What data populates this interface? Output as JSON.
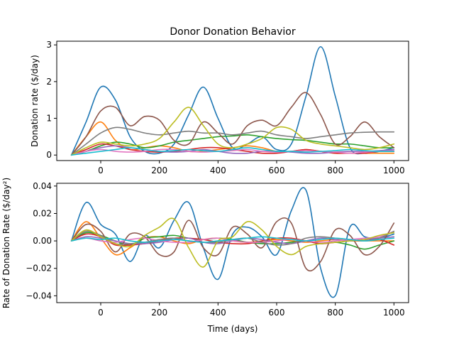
{
  "title": "Donor Donation Behavior",
  "chart_data": [
    {
      "type": "line",
      "title": "Donor Donation Behavior",
      "xlabel": "",
      "ylabel": "Donation rate ($/day)",
      "xlim": [
        -150,
        1050
      ],
      "ylim": [
        -0.15,
        3.1
      ],
      "xticks": [
        0,
        200,
        400,
        600,
        800,
        1000
      ],
      "yticks": [
        0,
        1,
        2,
        3
      ],
      "grid": false,
      "series": [
        {
          "color": "#1f77b4",
          "x": [
            -100,
            -50,
            0,
            50,
            100,
            150,
            200,
            250,
            300,
            350,
            400,
            450,
            500,
            550,
            600,
            650,
            700,
            750,
            800,
            850,
            900,
            950,
            1000
          ],
          "values": [
            0,
            0.9,
            1.85,
            1.5,
            0.5,
            0.1,
            0.05,
            0.3,
            1.1,
            1.85,
            1.0,
            0.2,
            0.3,
            0.5,
            0.15,
            0.3,
            1.6,
            2.95,
            1.6,
            0.2,
            0.05,
            0.1,
            0.2
          ]
        },
        {
          "color": "#ff7f0e",
          "x": [
            -100,
            -50,
            0,
            50,
            100,
            150,
            200,
            250,
            300,
            350,
            400,
            450,
            500,
            550,
            600,
            650,
            700,
            750,
            800,
            850,
            900,
            950,
            1000
          ],
          "values": [
            0,
            0.5,
            0.9,
            0.4,
            0.15,
            0.2,
            0.25,
            0.2,
            0.1,
            0.1,
            0.15,
            0.2,
            0.25,
            0.2,
            0.1,
            0.1,
            0.15,
            0.1,
            0.05,
            0.05,
            0.05,
            0.05,
            0.05
          ]
        },
        {
          "color": "#2ca02c",
          "x": [
            -100,
            -50,
            0,
            50,
            100,
            150,
            200,
            250,
            300,
            350,
            400,
            450,
            500,
            550,
            600,
            650,
            700,
            750,
            800,
            850,
            900,
            950,
            1000
          ],
          "values": [
            0,
            0.1,
            0.25,
            0.35,
            0.3,
            0.2,
            0.25,
            0.35,
            0.4,
            0.45,
            0.5,
            0.52,
            0.55,
            0.5,
            0.45,
            0.42,
            0.4,
            0.35,
            0.3,
            0.3,
            0.25,
            0.2,
            0.2
          ]
        },
        {
          "color": "#d62728",
          "x": [
            -100,
            -50,
            0,
            50,
            100,
            150,
            200,
            250,
            300,
            350,
            400,
            450,
            500,
            550,
            600,
            650,
            700,
            750,
            800,
            850,
            900,
            950,
            1000
          ],
          "values": [
            0,
            0.15,
            0.3,
            0.25,
            0.15,
            0.1,
            0.08,
            0.1,
            0.15,
            0.2,
            0.2,
            0.15,
            0.1,
            0.05,
            0.05,
            0.1,
            0.15,
            0.1,
            0.05,
            0.05,
            0.05,
            0.1,
            0.1
          ]
        },
        {
          "color": "#9467bd",
          "x": [
            -100,
            -50,
            0,
            50,
            100,
            150,
            200,
            250,
            300,
            350,
            400,
            450,
            500,
            550,
            600,
            650,
            700,
            750,
            800,
            850,
            900,
            950,
            1000
          ],
          "values": [
            0,
            0.1,
            0.2,
            0.25,
            0.2,
            0.15,
            0.1,
            0.08,
            0.1,
            0.15,
            0.1,
            0.05,
            0.05,
            0.1,
            0.1,
            0.08,
            0.05,
            0.05,
            0.08,
            0.1,
            0.1,
            0.12,
            0.15
          ]
        },
        {
          "color": "#8c564b",
          "x": [
            -100,
            -50,
            0,
            50,
            100,
            150,
            200,
            250,
            300,
            350,
            400,
            450,
            500,
            550,
            600,
            650,
            700,
            750,
            800,
            850,
            900,
            950,
            1000
          ],
          "values": [
            0,
            0.5,
            1.2,
            1.3,
            0.8,
            1.05,
            0.95,
            0.4,
            0.3,
            0.9,
            0.6,
            0.3,
            0.8,
            0.95,
            0.8,
            1.3,
            1.7,
            1.1,
            0.3,
            0.5,
            0.9,
            0.5,
            0.2
          ]
        },
        {
          "color": "#e377c2",
          "x": [
            -100,
            -50,
            0,
            50,
            100,
            150,
            200,
            250,
            300,
            350,
            400,
            450,
            500,
            550,
            600,
            650,
            700,
            750,
            800,
            850,
            900,
            950,
            1000
          ],
          "values": [
            0,
            0.1,
            0.15,
            0.1,
            0.08,
            0.1,
            0.15,
            0.15,
            0.1,
            0.08,
            0.1,
            0.12,
            0.15,
            0.1,
            0.08,
            0.1,
            0.12,
            0.1,
            0.08,
            0.05,
            0.08,
            0.1,
            0.12
          ]
        },
        {
          "color": "#7f7f7f",
          "x": [
            -100,
            -50,
            0,
            50,
            100,
            150,
            200,
            250,
            300,
            350,
            400,
            450,
            500,
            550,
            600,
            650,
            700,
            750,
            800,
            850,
            900,
            950,
            1000
          ],
          "values": [
            0,
            0.3,
            0.6,
            0.75,
            0.7,
            0.6,
            0.55,
            0.6,
            0.65,
            0.6,
            0.6,
            0.55,
            0.6,
            0.65,
            0.55,
            0.5,
            0.45,
            0.5,
            0.55,
            0.6,
            0.62,
            0.63,
            0.63
          ]
        },
        {
          "color": "#bcbd22",
          "x": [
            -100,
            -50,
            0,
            50,
            100,
            150,
            200,
            250,
            300,
            350,
            400,
            450,
            500,
            550,
            600,
            650,
            700,
            750,
            800,
            850,
            900,
            950,
            1000
          ],
          "values": [
            0,
            0.2,
            0.35,
            0.3,
            0.25,
            0.3,
            0.45,
            0.9,
            1.3,
            0.8,
            0.3,
            0.2,
            0.3,
            0.45,
            0.75,
            0.7,
            0.4,
            0.3,
            0.25,
            0.2,
            0.15,
            0.2,
            0.3
          ]
        },
        {
          "color": "#17becf",
          "x": [
            -100,
            -50,
            0,
            50,
            100,
            150,
            200,
            250,
            300,
            350,
            400,
            450,
            500,
            550,
            600,
            650,
            700,
            750,
            800,
            850,
            900,
            950,
            1000
          ],
          "values": [
            0,
            0.05,
            0.1,
            0.15,
            0.2,
            0.15,
            0.1,
            0.12,
            0.15,
            0.12,
            0.1,
            0.15,
            0.2,
            0.15,
            0.1,
            0.1,
            0.08,
            0.1,
            0.12,
            0.15,
            0.12,
            0.1,
            0.1
          ]
        }
      ]
    },
    {
      "type": "line",
      "title": "",
      "xlabel": "Time (days)",
      "ylabel": "Rate of Donation Rate ($/day²)",
      "xlim": [
        -150,
        1050
      ],
      "ylim": [
        -0.045,
        0.042
      ],
      "xticks": [
        0,
        200,
        400,
        600,
        800,
        1000
      ],
      "yticks": [
        -0.04,
        -0.02,
        0.0,
        0.02,
        0.04
      ],
      "yticklabels": [
        "−0.04",
        "−0.02",
        "0.00",
        "0.02",
        "0.04"
      ],
      "grid": false,
      "series": [
        {
          "color": "#1f77b4",
          "x": [
            -100,
            -50,
            0,
            50,
            100,
            150,
            200,
            250,
            300,
            350,
            400,
            450,
            500,
            550,
            600,
            650,
            700,
            750,
            800,
            850,
            900,
            950,
            1000
          ],
          "values": [
            0,
            0.028,
            0.012,
            0.005,
            -0.015,
            0.004,
            -0.005,
            0.015,
            0.028,
            -0.005,
            -0.028,
            0.005,
            0.01,
            0.003,
            -0.01,
            0.022,
            0.037,
            -0.02,
            -0.04,
            0.01,
            0.003,
            0.002,
            0.005
          ]
        },
        {
          "color": "#ff7f0e",
          "x": [
            -100,
            -50,
            0,
            50,
            100,
            150,
            200,
            250,
            300,
            350,
            400,
            450,
            500,
            550,
            600,
            650,
            700,
            750,
            800,
            850,
            900,
            950,
            1000
          ],
          "values": [
            0,
            0.014,
            0.002,
            -0.01,
            -0.005,
            0.002,
            0.003,
            0,
            -0.002,
            0.001,
            0.002,
            0,
            -0.001,
            0,
            0.001,
            0,
            -0.001,
            0,
            0.001,
            0,
            0,
            0,
            0
          ]
        },
        {
          "color": "#2ca02c",
          "x": [
            -100,
            -50,
            0,
            50,
            100,
            150,
            200,
            250,
            300,
            350,
            400,
            450,
            500,
            550,
            600,
            650,
            700,
            750,
            800,
            850,
            900,
            950,
            1000
          ],
          "values": [
            0,
            0.006,
            0.004,
            0,
            -0.003,
            0.002,
            0.003,
            0.004,
            0.002,
            0.001,
            0.002,
            0.001,
            -0.001,
            -0.002,
            -0.002,
            -0.001,
            0,
            -0.002,
            -0.001,
            -0.003,
            -0.006,
            -0.003,
            0
          ]
        },
        {
          "color": "#d62728",
          "x": [
            -100,
            -50,
            0,
            50,
            100,
            150,
            200,
            250,
            300,
            350,
            400,
            450,
            500,
            550,
            600,
            650,
            700,
            750,
            800,
            850,
            900,
            950,
            1000
          ],
          "values": [
            0,
            0.005,
            0.003,
            -0.003,
            -0.003,
            -0.002,
            0,
            0.002,
            0.002,
            0.001,
            -0.001,
            -0.002,
            -0.002,
            0,
            0.002,
            0.002,
            0,
            -0.002,
            -0.001,
            0,
            0.001,
            0.001,
            -0.003
          ]
        },
        {
          "color": "#9467bd",
          "x": [
            -100,
            -50,
            0,
            50,
            100,
            150,
            200,
            250,
            300,
            350,
            400,
            450,
            500,
            550,
            600,
            650,
            700,
            750,
            800,
            850,
            900,
            950,
            1000
          ],
          "values": [
            0,
            0.003,
            0.002,
            0,
            -0.002,
            -0.002,
            -0.001,
            0.001,
            0.002,
            -0.001,
            -0.002,
            0,
            0.002,
            0.001,
            -0.001,
            -0.002,
            0,
            0.002,
            0.001,
            0,
            0.001,
            0.002,
            0.003
          ]
        },
        {
          "color": "#8c564b",
          "x": [
            -100,
            -50,
            0,
            50,
            100,
            150,
            200,
            250,
            300,
            350,
            400,
            450,
            500,
            550,
            600,
            650,
            700,
            750,
            800,
            850,
            900,
            950,
            1000
          ],
          "values": [
            0,
            0.012,
            0.007,
            -0.008,
            0.005,
            0.003,
            -0.01,
            -0.008,
            0.015,
            -0.005,
            -0.01,
            0.01,
            0.005,
            -0.005,
            0.014,
            0.013,
            -0.02,
            -0.015,
            0.008,
            0.004,
            -0.01,
            -0.004,
            0.013
          ]
        },
        {
          "color": "#e377c2",
          "x": [
            -100,
            -50,
            0,
            50,
            100,
            150,
            200,
            250,
            300,
            350,
            400,
            450,
            500,
            550,
            600,
            650,
            700,
            750,
            800,
            850,
            900,
            950,
            1000
          ],
          "values": [
            0,
            0.002,
            0,
            -0.001,
            0.001,
            0.002,
            0,
            -0.001,
            -0.001,
            0.001,
            0.002,
            0,
            -0.001,
            -0.001,
            0,
            0.001,
            0,
            -0.001,
            0,
            0.001,
            0.002,
            0.003,
            0.007
          ]
        },
        {
          "color": "#7f7f7f",
          "x": [
            -100,
            -50,
            0,
            50,
            100,
            150,
            200,
            250,
            300,
            350,
            400,
            450,
            500,
            550,
            600,
            650,
            700,
            750,
            800,
            850,
            900,
            950,
            1000
          ],
          "values": [
            0,
            0.007,
            0.004,
            -0.002,
            -0.002,
            -0.001,
            0.001,
            0.002,
            0,
            -0.001,
            -0.001,
            0.001,
            0.002,
            -0.001,
            -0.003,
            -0.002,
            0.002,
            0.003,
            0.002,
            0.001,
            0,
            0.002,
            0.007
          ]
        },
        {
          "color": "#bcbd22",
          "x": [
            -100,
            -50,
            0,
            50,
            100,
            150,
            200,
            250,
            300,
            350,
            400,
            450,
            500,
            550,
            600,
            650,
            700,
            750,
            800,
            850,
            900,
            950,
            1000
          ],
          "values": [
            0,
            0.008,
            0.003,
            -0.002,
            -0.004,
            0.004,
            0.01,
            0.016,
            -0.005,
            -0.019,
            0,
            0.003,
            0.014,
            0.008,
            -0.004,
            -0.01,
            -0.004,
            -0.002,
            -0.001,
            0,
            0.001,
            0.004,
            0.006
          ]
        },
        {
          "color": "#17becf",
          "x": [
            -100,
            -50,
            0,
            50,
            100,
            150,
            200,
            250,
            300,
            350,
            400,
            450,
            500,
            550,
            600,
            650,
            700,
            750,
            800,
            850,
            900,
            950,
            1000
          ],
          "values": [
            0,
            0.002,
            0.001,
            0.002,
            0,
            -0.001,
            0,
            0.001,
            0,
            -0.001,
            0,
            0.001,
            0.002,
            0.003,
            0.002,
            0.001,
            0,
            0.001,
            0.002,
            0.001,
            0,
            0.001,
            0.002
          ]
        }
      ]
    }
  ]
}
